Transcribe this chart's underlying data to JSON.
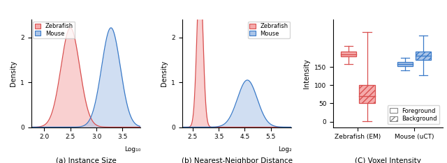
{
  "panel_a": {
    "caption": "(a) Instance Size",
    "xlabel_right": "Log₁₀",
    "ylabel": "Density",
    "zebrafish_mean": 2.5,
    "zebrafish_std": 0.18,
    "mouse_mean": 3.28,
    "mouse_std": 0.18,
    "xlim": [
      1.75,
      3.85
    ],
    "ylim": [
      0,
      2.4
    ],
    "yticks": [
      0.0,
      1.0,
      2.0
    ],
    "xticks": [
      2.0,
      2.5,
      3.0,
      3.5
    ]
  },
  "panel_b": {
    "caption": "(b) Nearest-Neighbor Distance",
    "xlabel_right": "Log₂",
    "ylabel": "Density",
    "zebrafish_mean": 2.78,
    "zebrafish_std": 0.115,
    "mouse_mean": 4.6,
    "mouse_std": 0.38,
    "xlim": [
      2.1,
      6.3
    ],
    "ylim": [
      0,
      2.4
    ],
    "yticks": [
      0.0,
      1.0,
      2.0
    ],
    "xticks": [
      2.5,
      3.5,
      4.5,
      5.5
    ]
  },
  "panel_c": {
    "caption": "(C) Voxel Intensity",
    "ylabel": "Intensity",
    "ylim": [
      -15,
      280
    ],
    "yticks": [
      0,
      50,
      100,
      150
    ],
    "zebrafish_fg": {
      "q1": 178,
      "median": 185,
      "q3": 193,
      "whislo": 158,
      "whishi": 207
    },
    "zebrafish_bg": {
      "q1": 50,
      "median": 70,
      "q3": 100,
      "whislo": 2,
      "whishi": 245
    },
    "mouse_fg": {
      "q1": 152,
      "median": 158,
      "q3": 163,
      "whislo": 140,
      "whishi": 175
    },
    "mouse_bg": {
      "q1": 170,
      "median": 180,
      "q3": 192,
      "whislo": 128,
      "whishi": 237
    },
    "xtick_labels": [
      "Zebrafish (EM)",
      "Mouse (uCT)"
    ]
  },
  "colors": {
    "zebrafish_fill": "#f5aaaa",
    "zebrafish_line": "#d95050",
    "mouse_fill": "#aac4e8",
    "mouse_line": "#3a7ac8"
  },
  "legend": {
    "zebrafish_label": "Zebrafish",
    "mouse_label": "Mouse"
  }
}
